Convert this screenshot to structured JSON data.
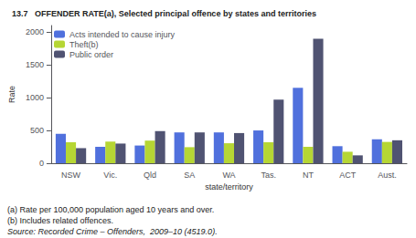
{
  "chart_data": {
    "type": "bar",
    "title": "13.7   OFFENDER RATE(a), Selected principal offence by states and territories",
    "categories": [
      "NSW",
      "Vic.",
      "Qld",
      "SA",
      "WA",
      "Tas.",
      "NT",
      "ACT",
      "Aust."
    ],
    "series": [
      {
        "name": "Acts intended to cause injury",
        "values": [
          450,
          250,
          270,
          470,
          470,
          500,
          1150,
          260,
          365
        ]
      },
      {
        "name": "Theft(b)",
        "values": [
          320,
          330,
          345,
          245,
          305,
          320,
          250,
          175,
          325
        ]
      },
      {
        "name": "Public order",
        "values": [
          230,
          300,
          490,
          470,
          460,
          970,
          1900,
          120,
          350
        ]
      }
    ],
    "xlabel": "state/territory",
    "ylabel": "Rate",
    "ylim": [
      0,
      2100
    ],
    "yticks": [
      0,
      500,
      1000,
      1500,
      2000
    ],
    "grid": false,
    "legend": "upper left",
    "annotations": [
      "(a) Rate per 100,000 population aged 10 years and over.",
      "(b) Includes related offences.",
      "Source: Recorded Crime – Offenders,  2009–10 (4519.0)."
    ]
  }
}
